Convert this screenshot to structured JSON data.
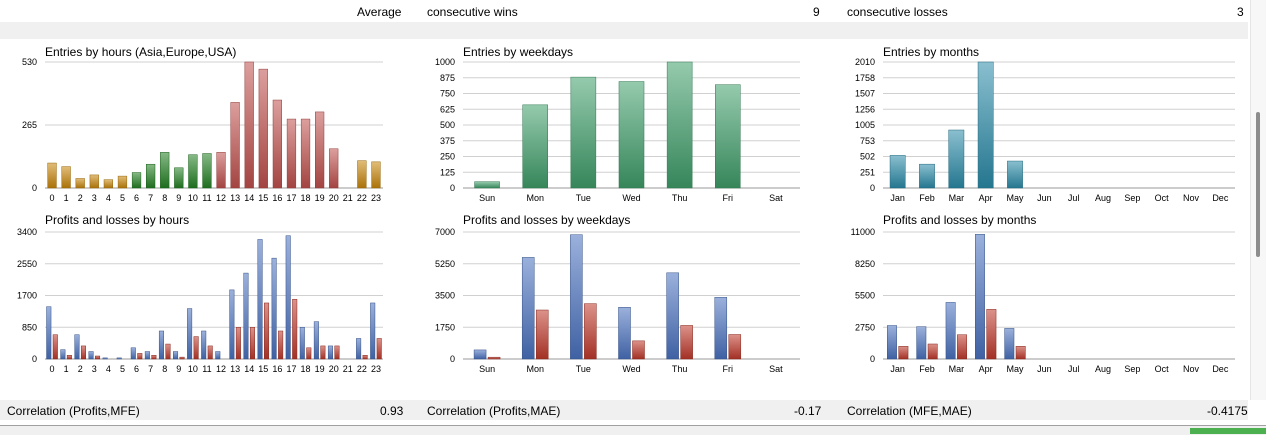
{
  "top_row": {
    "average_label": "Average",
    "wins_label": "consecutive wins",
    "wins_value": "9",
    "losses_label": "consecutive losses",
    "losses_value": "3"
  },
  "bottom_row": {
    "corr1_label": "Correlation (Profits,MFE)",
    "corr1_value": "0.93",
    "corr2_label": "Correlation (Profits,MAE)",
    "corr2_value": "-0.17",
    "corr3_label": "Correlation (MFE,MAE)",
    "corr3_value": "-0.4175"
  },
  "colors": {
    "asia": "#c8860a",
    "europe": "#238023",
    "usa": "#c0504d",
    "weekdays": "#3f9e6a",
    "months": "#2a8ba8",
    "profit": "#4a72c0",
    "loss": "#c0392b",
    "grid": "#d0d0d0"
  },
  "chart_data": [
    {
      "id": "hours",
      "type": "bar",
      "title": "Entries by hours (Asia,Europe,USA)",
      "categories": [
        "0",
        "1",
        "2",
        "3",
        "4",
        "5",
        "6",
        "7",
        "8",
        "9",
        "10",
        "11",
        "12",
        "13",
        "14",
        "15",
        "16",
        "17",
        "18",
        "19",
        "20",
        "21",
        "22",
        "23"
      ],
      "values": [
        105,
        90,
        40,
        55,
        35,
        50,
        65,
        100,
        150,
        85,
        140,
        145,
        150,
        360,
        530,
        500,
        370,
        290,
        290,
        320,
        165,
        0,
        115,
        110
      ],
      "groups": [
        "asia",
        "asia",
        "asia",
        "asia",
        "asia",
        "asia",
        "europe",
        "europe",
        "europe",
        "europe",
        "europe",
        "europe",
        "usa",
        "usa",
        "usa",
        "usa",
        "usa",
        "usa",
        "usa",
        "usa",
        "usa",
        "usa",
        "asia",
        "asia"
      ],
      "ylim": [
        0,
        530
      ],
      "yticks": [
        "0",
        "265",
        "530"
      ]
    },
    {
      "id": "weekdays",
      "type": "bar",
      "title": "Entries by weekdays",
      "categories": [
        "Sun",
        "Mon",
        "Tue",
        "Wed",
        "Thu",
        "Fri",
        "Sat"
      ],
      "values": [
        50,
        660,
        880,
        845,
        1000,
        820,
        0
      ],
      "ylim": [
        0,
        1000
      ],
      "yticks": [
        "0",
        "125",
        "250",
        "375",
        "500",
        "625",
        "750",
        "875",
        "1000"
      ]
    },
    {
      "id": "months",
      "type": "bar",
      "title": "Entries by months",
      "categories": [
        "Jan",
        "Feb",
        "Mar",
        "Apr",
        "May",
        "Jun",
        "Jul",
        "Aug",
        "Sep",
        "Oct",
        "Nov",
        "Dec"
      ],
      "values": [
        520,
        380,
        925,
        2010,
        430,
        0,
        0,
        0,
        0,
        0,
        0,
        0
      ],
      "ylim": [
        0,
        2010
      ],
      "yticks": [
        "0",
        "251",
        "502",
        "753",
        "1005",
        "1256",
        "1507",
        "1758",
        "2010"
      ]
    },
    {
      "id": "pl_hours",
      "type": "bar",
      "title": "Profits and losses by hours",
      "categories": [
        "0",
        "1",
        "2",
        "3",
        "4",
        "5",
        "6",
        "7",
        "8",
        "9",
        "10",
        "11",
        "12",
        "13",
        "14",
        "15",
        "16",
        "17",
        "18",
        "19",
        "20",
        "21",
        "22",
        "23"
      ],
      "series": [
        {
          "name": "profits",
          "values": [
            1400,
            250,
            650,
            200,
            30,
            30,
            300,
            200,
            750,
            200,
            1350,
            750,
            200,
            1850,
            2300,
            3200,
            2700,
            3300,
            850,
            1000,
            350,
            0,
            550,
            1500
          ]
        },
        {
          "name": "losses",
          "values": [
            650,
            100,
            350,
            80,
            0,
            0,
            150,
            100,
            400,
            50,
            600,
            350,
            0,
            850,
            850,
            1500,
            750,
            1600,
            300,
            350,
            350,
            0,
            100,
            550
          ]
        }
      ],
      "ylim": [
        0,
        3400
      ],
      "yticks": [
        "0",
        "850",
        "1700",
        "2550",
        "3400"
      ]
    },
    {
      "id": "pl_weekdays",
      "type": "bar",
      "title": "Profits and losses by weekdays",
      "categories": [
        "Sun",
        "Mon",
        "Tue",
        "Wed",
        "Thu",
        "Fri",
        "Sat"
      ],
      "series": [
        {
          "name": "profits",
          "values": [
            500,
            5600,
            6850,
            2850,
            4750,
            3400,
            0
          ]
        },
        {
          "name": "losses",
          "values": [
            100,
            2700,
            3050,
            1000,
            1850,
            1350,
            0
          ]
        }
      ],
      "ylim": [
        0,
        7000
      ],
      "yticks": [
        "0",
        "1750",
        "3500",
        "5250",
        "7000"
      ]
    },
    {
      "id": "pl_months",
      "type": "bar",
      "title": "Profits and losses by months",
      "categories": [
        "Jan",
        "Feb",
        "Mar",
        "Apr",
        "May",
        "Jun",
        "Jul",
        "Aug",
        "Sep",
        "Oct",
        "Nov",
        "Dec"
      ],
      "series": [
        {
          "name": "profits",
          "values": [
            2900,
            2800,
            4900,
            10800,
            2650,
            0,
            0,
            0,
            0,
            0,
            0,
            0
          ]
        },
        {
          "name": "losses",
          "values": [
            1100,
            1300,
            2100,
            4300,
            1100,
            0,
            0,
            0,
            0,
            0,
            0,
            0
          ]
        }
      ],
      "ylim": [
        0,
        11000
      ],
      "yticks": [
        "0",
        "2750",
        "5500",
        "8250",
        "11000"
      ]
    }
  ]
}
